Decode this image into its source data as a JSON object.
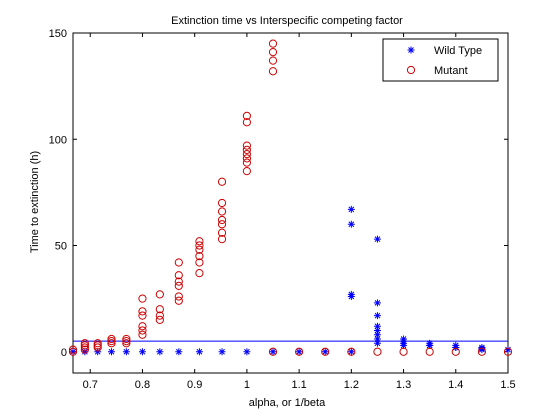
{
  "chart_data": {
    "type": "scatter",
    "title": "Extinction time vs Interspecific competing factor",
    "xlabel": "alpha, or 1/beta",
    "ylabel": "Time to extinction (h)",
    "xlim": [
      0.667,
      1.5
    ],
    "ylim": [
      -10,
      150
    ],
    "xticks": [
      "0.7",
      "0.8",
      "0.9",
      "1",
      "1.1",
      "1.2",
      "1.3",
      "1.4",
      "1.5"
    ],
    "yticks": [
      "0",
      "50",
      "100",
      "150"
    ],
    "legend_position": "top-right",
    "reference_line": {
      "y": 5,
      "x": [
        0.667,
        1.5
      ],
      "color": "#0000ff"
    },
    "series": [
      {
        "name": "Wild Type",
        "marker": "asterisk",
        "color": "#0000ff",
        "points": [
          [
            0.667,
            0
          ],
          [
            0.6897,
            0
          ],
          [
            0.7143,
            0
          ],
          [
            0.7407,
            0
          ],
          [
            0.7692,
            0
          ],
          [
            0.8,
            0
          ],
          [
            0.8333,
            0
          ],
          [
            0.8696,
            0
          ],
          [
            0.9091,
            0
          ],
          [
            0.9524,
            0
          ],
          [
            1.0,
            0
          ],
          [
            1.05,
            0
          ],
          [
            1.1,
            0
          ],
          [
            1.15,
            0
          ],
          [
            1.2,
            0
          ],
          [
            1.2,
            67
          ],
          [
            1.2,
            60
          ],
          [
            1.2,
            27
          ],
          [
            1.2,
            26
          ],
          [
            1.25,
            53
          ],
          [
            1.25,
            23
          ],
          [
            1.25,
            17
          ],
          [
            1.25,
            12
          ],
          [
            1.25,
            10
          ],
          [
            1.25,
            8
          ],
          [
            1.25,
            6
          ],
          [
            1.25,
            4
          ],
          [
            1.3,
            6
          ],
          [
            1.3,
            5
          ],
          [
            1.3,
            4
          ],
          [
            1.3,
            3
          ],
          [
            1.35,
            4
          ],
          [
            1.35,
            3
          ],
          [
            1.35,
            3
          ],
          [
            1.4,
            3
          ],
          [
            1.4,
            2
          ],
          [
            1.4,
            2
          ],
          [
            1.45,
            2
          ],
          [
            1.45,
            1.5
          ],
          [
            1.45,
            1
          ],
          [
            1.5,
            1
          ]
        ]
      },
      {
        "name": "Mutant",
        "marker": "circle",
        "color": "#cc0000",
        "points": [
          [
            0.667,
            0
          ],
          [
            0.667,
            1
          ],
          [
            0.6897,
            1
          ],
          [
            0.6897,
            2
          ],
          [
            0.6897,
            3
          ],
          [
            0.6897,
            4
          ],
          [
            0.7143,
            2
          ],
          [
            0.7143,
            3
          ],
          [
            0.7143,
            4
          ],
          [
            0.7407,
            4
          ],
          [
            0.7407,
            5
          ],
          [
            0.7407,
            6
          ],
          [
            0.7692,
            4
          ],
          [
            0.7692,
            5
          ],
          [
            0.7692,
            6
          ],
          [
            0.8,
            8
          ],
          [
            0.8,
            10
          ],
          [
            0.8,
            12
          ],
          [
            0.8,
            17
          ],
          [
            0.8,
            19
          ],
          [
            0.8,
            25
          ],
          [
            0.8333,
            15
          ],
          [
            0.8333,
            17
          ],
          [
            0.8333,
            20
          ],
          [
            0.8333,
            27
          ],
          [
            0.8696,
            24
          ],
          [
            0.8696,
            26
          ],
          [
            0.8696,
            31
          ],
          [
            0.8696,
            33
          ],
          [
            0.8696,
            36
          ],
          [
            0.8696,
            42
          ],
          [
            0.9091,
            37
          ],
          [
            0.9091,
            42
          ],
          [
            0.9091,
            45
          ],
          [
            0.9091,
            48
          ],
          [
            0.9091,
            50
          ],
          [
            0.9091,
            52
          ],
          [
            0.9524,
            53
          ],
          [
            0.9524,
            56
          ],
          [
            0.9524,
            60
          ],
          [
            0.9524,
            62
          ],
          [
            0.9524,
            66
          ],
          [
            0.9524,
            70
          ],
          [
            0.9524,
            80
          ],
          [
            1.0,
            85
          ],
          [
            1.0,
            89
          ],
          [
            1.0,
            91
          ],
          [
            1.0,
            93
          ],
          [
            1.0,
            95
          ],
          [
            1.0,
            97
          ],
          [
            1.0,
            108
          ],
          [
            1.0,
            111
          ],
          [
            1.05,
            132
          ],
          [
            1.05,
            137
          ],
          [
            1.05,
            141
          ],
          [
            1.05,
            145
          ],
          [
            1.05,
            0
          ],
          [
            1.1,
            0
          ],
          [
            1.15,
            0
          ],
          [
            1.2,
            0
          ],
          [
            1.25,
            0
          ],
          [
            1.3,
            0
          ],
          [
            1.35,
            0
          ],
          [
            1.4,
            0
          ],
          [
            1.45,
            0
          ],
          [
            1.5,
            0
          ]
        ]
      }
    ]
  }
}
